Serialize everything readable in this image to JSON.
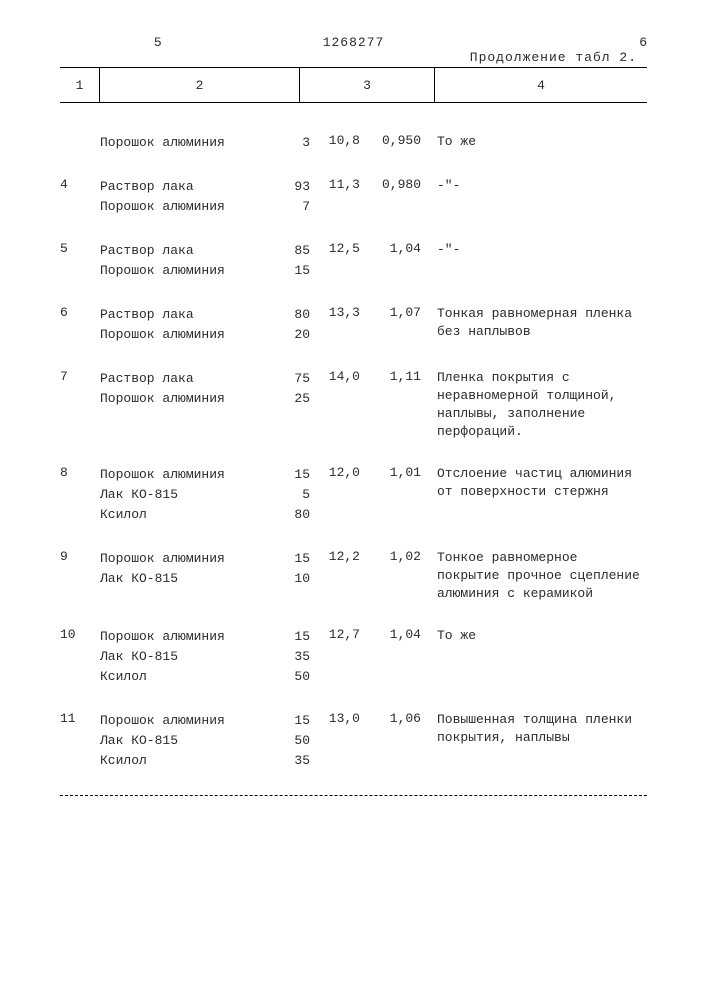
{
  "header": {
    "page_mark": "5",
    "doc_number": "1268277",
    "page_mark_right": "6",
    "continuation": "Продолжение табл 2."
  },
  "columns": {
    "c1": "1",
    "c2": "2",
    "c3": "3",
    "c4": "4"
  },
  "rows": [
    {
      "n": "",
      "components": [
        {
          "name": "Порошок алюминия",
          "qty": "3"
        }
      ],
      "v1": "10,8",
      "v2": "0,950",
      "note": "То же"
    },
    {
      "n": "4",
      "components": [
        {
          "name": "Раствор лака",
          "qty": "93"
        },
        {
          "name": "Порошок алюминия",
          "qty": "7"
        }
      ],
      "v1": "11,3",
      "v2": "0,980",
      "note": "-\"-"
    },
    {
      "n": "5",
      "components": [
        {
          "name": "Раствор лака",
          "qty": "85"
        },
        {
          "name": "Порошок алюминия",
          "qty": "15"
        }
      ],
      "v1": "12,5",
      "v2": "1,04",
      "note": "-\"-"
    },
    {
      "n": "6",
      "components": [
        {
          "name": "Раствор лака",
          "qty": "80"
        },
        {
          "name": "Порошок алюминия",
          "qty": "20"
        }
      ],
      "v1": "13,3",
      "v2": "1,07",
      "note": "Тонкая равномерная пленка без наплывов"
    },
    {
      "n": "7",
      "components": [
        {
          "name": "Раствор лака",
          "qty": "75"
        },
        {
          "name": "Порошок алюминия",
          "qty": "25"
        }
      ],
      "v1": "14,0",
      "v2": "1,11",
      "note": "Пленка покрытия с неравномерной толщиной, наплывы, заполнение перфораций."
    },
    {
      "n": "8",
      "components": [
        {
          "name": "Порошок алюминия",
          "qty": "15"
        },
        {
          "name": "Лак КО-815",
          "qty": "5"
        },
        {
          "name": "Ксилол",
          "qty": "80"
        }
      ],
      "v1": "12,0",
      "v2": "1,01",
      "note": "Отслоение частиц алюминия от поверхности стержня"
    },
    {
      "n": "9",
      "components": [
        {
          "name": "Порошок алюминия",
          "qty": "15"
        },
        {
          "name": "Лак КО-815",
          "qty": "10"
        }
      ],
      "v1": "12,2",
      "v2": "1,02",
      "note": "Тонкое равномерное покрытие прочное сцепление алюминия с керамикой"
    },
    {
      "n": "10",
      "components": [
        {
          "name": "Порошок алюминия",
          "qty": "15"
        },
        {
          "name": "Лак КО-815",
          "qty": "35"
        },
        {
          "name": "Ксилол",
          "qty": "50"
        }
      ],
      "v1": "12,7",
      "v2": "1,04",
      "note": "То же"
    },
    {
      "n": "11",
      "components": [
        {
          "name": "Порошок алюминия",
          "qty": "15"
        },
        {
          "name": "Лак КО-815",
          "qty": "50"
        },
        {
          "name": "Ксилол",
          "qty": "35"
        }
      ],
      "v1": "13,0",
      "v2": "1,06",
      "note": "Повышенная толщина пленки покрытия, наплывы"
    }
  ],
  "col_widths": {
    "head_c1": 40,
    "head_c2": 200,
    "head_c3": 135,
    "head_c4": 210
  }
}
